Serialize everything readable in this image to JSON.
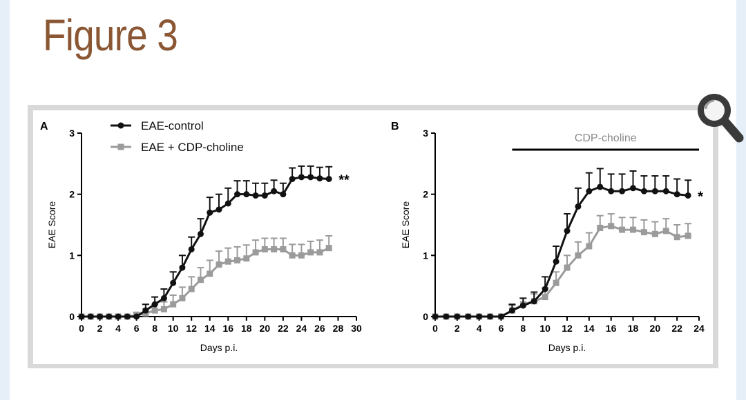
{
  "page": {
    "title": "Figure 3"
  },
  "zoom_icon": "magnifier-icon",
  "colors": {
    "title": "#8a5633",
    "control": "#111111",
    "treated": "#9b9b9b"
  },
  "chart_data": [
    {
      "type": "line",
      "panel_label": "A",
      "xlabel": "Days p.i.",
      "ylabel": "EAE Score",
      "xlim": [
        0,
        30
      ],
      "ylim": [
        0,
        3
      ],
      "xticks": [
        0,
        2,
        4,
        6,
        8,
        10,
        12,
        14,
        16,
        18,
        20,
        22,
        24,
        26,
        28,
        30
      ],
      "yticks": [
        0,
        1,
        2,
        3
      ],
      "legend": {
        "placement": "top-left",
        "entries": [
          "EAE-control",
          "EAE + CDP-choline"
        ]
      },
      "significance": "**",
      "series": [
        {
          "name": "EAE-control",
          "color": "#111111",
          "marker": "circle",
          "x": [
            0,
            1,
            2,
            3,
            4,
            5,
            6,
            7,
            8,
            9,
            10,
            11,
            12,
            13,
            14,
            15,
            16,
            17,
            18,
            19,
            20,
            21,
            22,
            23,
            24,
            25,
            26,
            27
          ],
          "y": [
            0,
            0,
            0,
            0,
            0,
            0,
            0,
            0.1,
            0.2,
            0.3,
            0.55,
            0.8,
            1.1,
            1.35,
            1.7,
            1.75,
            1.85,
            2.0,
            2.0,
            1.98,
            1.98,
            2.05,
            2.0,
            2.25,
            2.28,
            2.28,
            2.26,
            2.25
          ],
          "err": [
            0,
            0,
            0,
            0,
            0,
            0,
            0,
            0.1,
            0.12,
            0.15,
            0.18,
            0.2,
            0.2,
            0.25,
            0.25,
            0.25,
            0.25,
            0.22,
            0.22,
            0.2,
            0.2,
            0.18,
            0.18,
            0.18,
            0.18,
            0.18,
            0.18,
            0.2
          ]
        },
        {
          "name": "EAE + CDP-choline",
          "color": "#9b9b9b",
          "marker": "square",
          "x": [
            0,
            1,
            2,
            3,
            4,
            5,
            6,
            7,
            8,
            9,
            10,
            11,
            12,
            13,
            14,
            15,
            16,
            17,
            18,
            19,
            20,
            21,
            22,
            23,
            24,
            25,
            26,
            27
          ],
          "y": [
            0,
            0,
            0,
            0,
            0,
            0,
            0.02,
            0.05,
            0.1,
            0.12,
            0.2,
            0.3,
            0.45,
            0.6,
            0.7,
            0.85,
            0.9,
            0.92,
            0.95,
            1.05,
            1.1,
            1.1,
            1.1,
            1.0,
            1.0,
            1.05,
            1.05,
            1.12
          ],
          "err": [
            0,
            0,
            0,
            0,
            0,
            0,
            0.05,
            0.08,
            0.1,
            0.12,
            0.15,
            0.18,
            0.2,
            0.2,
            0.22,
            0.22,
            0.22,
            0.22,
            0.22,
            0.2,
            0.18,
            0.18,
            0.18,
            0.18,
            0.18,
            0.18,
            0.2,
            0.2
          ]
        }
      ]
    },
    {
      "type": "line",
      "panel_label": "B",
      "xlabel": "Days p.i.",
      "ylabel": "EAE Score",
      "xlim": [
        0,
        24
      ],
      "ylim": [
        0,
        3
      ],
      "xticks": [
        0,
        2,
        4,
        6,
        8,
        10,
        12,
        14,
        16,
        18,
        20,
        22,
        24
      ],
      "yticks": [
        0,
        1,
        2,
        3
      ],
      "treatment_bar": {
        "label": "CDP-choline",
        "start": 7,
        "end": 24
      },
      "significance": "*",
      "series": [
        {
          "name": "EAE-control",
          "color": "#111111",
          "marker": "circle",
          "x": [
            0,
            1,
            2,
            3,
            4,
            5,
            6,
            7,
            8,
            9,
            10,
            11,
            12,
            13,
            14,
            15,
            16,
            17,
            18,
            19,
            20,
            21,
            22,
            23
          ],
          "y": [
            0,
            0,
            0,
            0,
            0,
            0,
            0,
            0.1,
            0.18,
            0.25,
            0.45,
            0.9,
            1.4,
            1.8,
            2.05,
            2.12,
            2.05,
            2.05,
            2.1,
            2.05,
            2.05,
            2.05,
            2.0,
            1.98
          ],
          "err": [
            0,
            0,
            0,
            0,
            0,
            0,
            0,
            0.1,
            0.12,
            0.15,
            0.2,
            0.25,
            0.28,
            0.3,
            0.3,
            0.3,
            0.28,
            0.28,
            0.28,
            0.25,
            0.25,
            0.25,
            0.25,
            0.25
          ]
        },
        {
          "name": "EAE + CDP-choline",
          "color": "#9b9b9b",
          "marker": "square",
          "x": [
            0,
            1,
            2,
            3,
            4,
            5,
            6,
            7,
            8,
            9,
            10,
            11,
            12,
            13,
            14,
            15,
            16,
            17,
            18,
            19,
            20,
            21,
            22,
            23
          ],
          "y": [
            0,
            0,
            0,
            0,
            0,
            0,
            0,
            0.1,
            0.2,
            0.25,
            0.32,
            0.55,
            0.8,
            1.0,
            1.15,
            1.45,
            1.48,
            1.42,
            1.42,
            1.38,
            1.35,
            1.4,
            1.3,
            1.32
          ],
          "err": [
            0,
            0,
            0,
            0,
            0,
            0,
            0,
            0.08,
            0.1,
            0.12,
            0.15,
            0.18,
            0.2,
            0.22,
            0.22,
            0.2,
            0.2,
            0.2,
            0.2,
            0.2,
            0.2,
            0.2,
            0.2,
            0.2
          ]
        }
      ]
    }
  ]
}
